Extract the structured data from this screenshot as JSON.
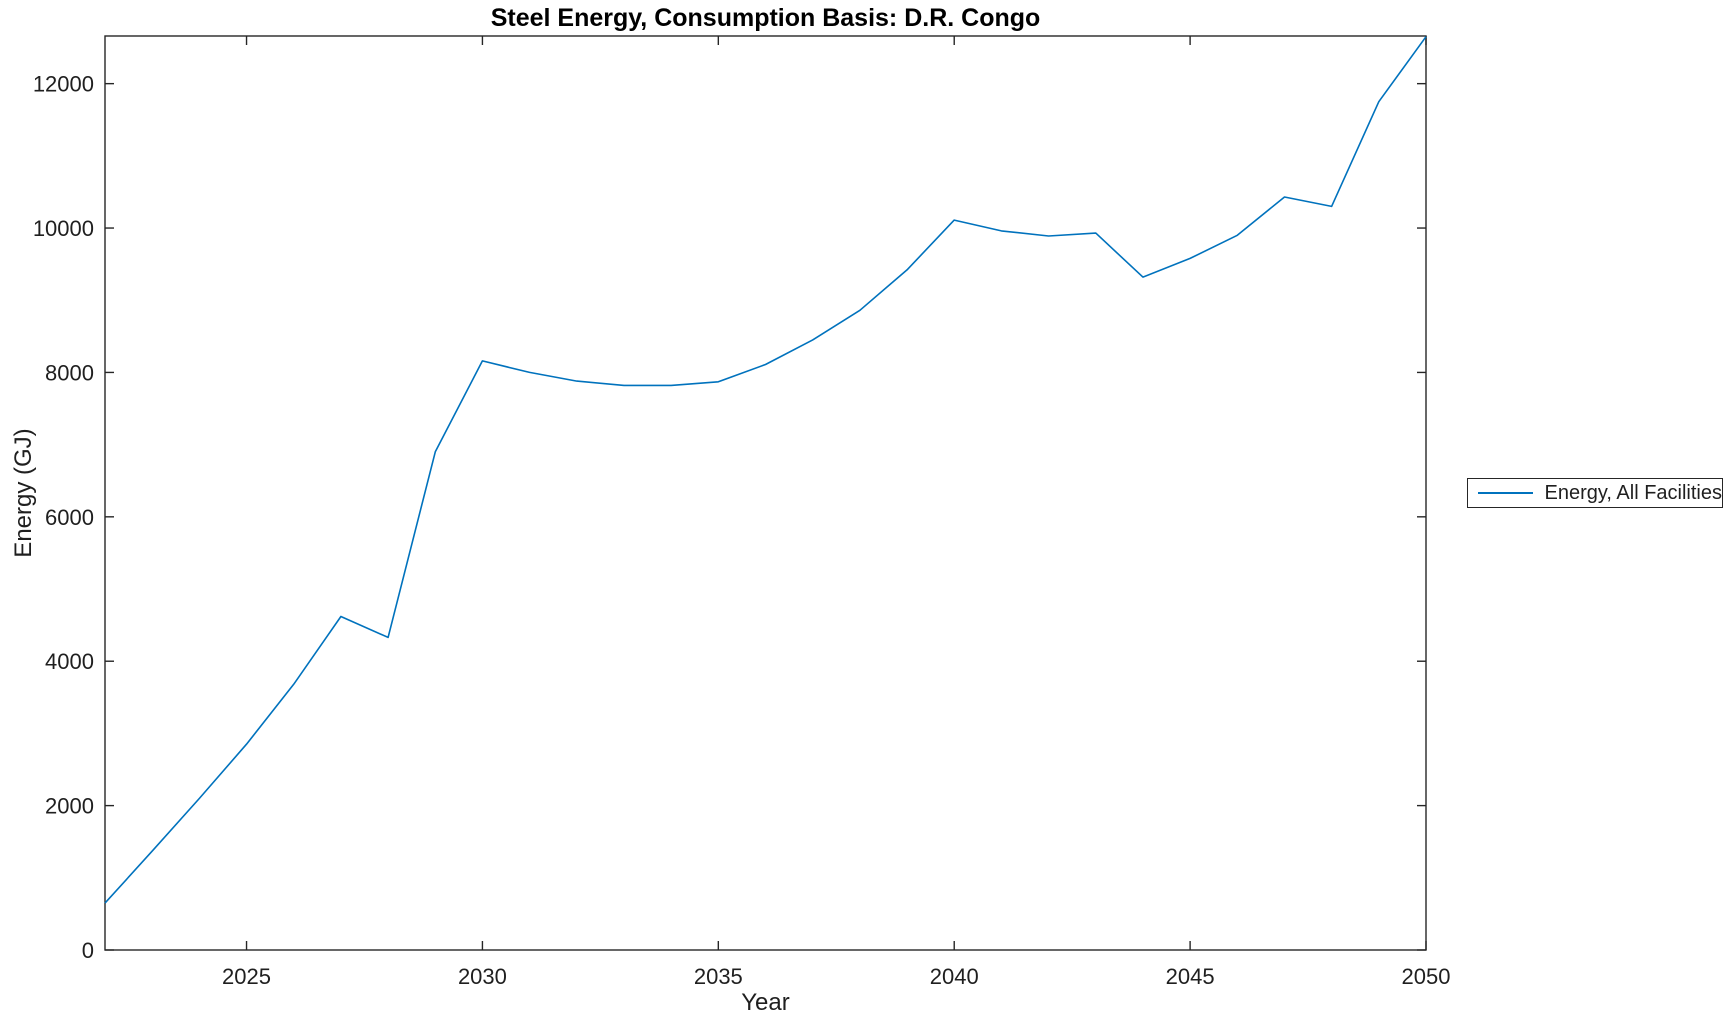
{
  "chart_data": {
    "type": "line",
    "title": "Steel Energy, Consumption Basis: D.R. Congo",
    "xlabel": "Year",
    "ylabel": "Energy (GJ)",
    "xlim": [
      2022,
      2050
    ],
    "ylim": [
      0,
      12660
    ],
    "xticks": [
      2025,
      2030,
      2035,
      2040,
      2045,
      2050
    ],
    "yticks": [
      0,
      2000,
      4000,
      6000,
      8000,
      10000,
      12000
    ],
    "grid": false,
    "legend_position": "right-outside",
    "axis_color": "#262626",
    "x": [
      2022,
      2023,
      2024,
      2025,
      2026,
      2027,
      2028,
      2029,
      2030,
      2031,
      2032,
      2033,
      2034,
      2035,
      2036,
      2037,
      2038,
      2039,
      2040,
      2041,
      2042,
      2043,
      2044,
      2045,
      2046,
      2047,
      2048,
      2049,
      2050
    ],
    "series": [
      {
        "name": "Energy, All Facilities",
        "color": "#0072BD",
        "values": [
          650,
          1370,
          2100,
          2850,
          3680,
          4620,
          4330,
          6900,
          8160,
          8000,
          7880,
          7820,
          7820,
          7870,
          8110,
          8450,
          8860,
          9420,
          10110,
          9960,
          9890,
          9930,
          9320,
          9580,
          9900,
          10430,
          10300,
          11750,
          12650
        ]
      }
    ]
  }
}
